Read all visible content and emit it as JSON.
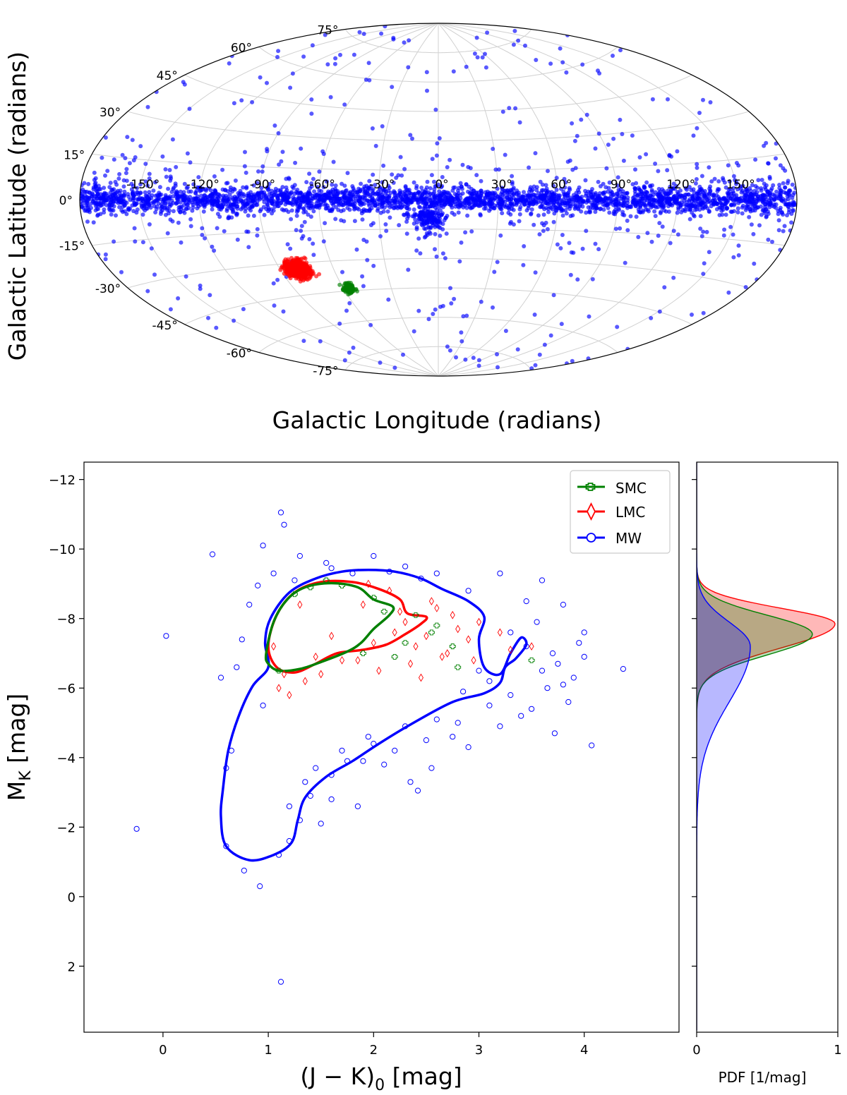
{
  "chart_data": [
    {
      "type": "scatter",
      "projection": "aitoff",
      "title": "",
      "xlabel": "Galactic Longitude (radians)",
      "ylabel": "Galactic Latitude (radians)",
      "lon_tick_labels": [
        "-150°",
        "-120°",
        "-90°",
        "-60°",
        "-30°",
        "0°",
        "30°",
        "60°",
        "90°",
        "120°",
        "150°"
      ],
      "lat_tick_labels": [
        "75°",
        "60°",
        "45°",
        "30°",
        "15°",
        "0°",
        "-15°",
        "-30°",
        "-45°",
        "-60°",
        "-75°"
      ],
      "grid": true,
      "series": [
        {
          "name": "MW",
          "color": "#0000ff",
          "description": "dense band along the Galactic plane with scattered high-latitude stars and a bulge extension near l=0° below the plane"
        },
        {
          "name": "LMC",
          "color": "#ff0000",
          "center_lon_deg": -80,
          "center_lat_deg": -33
        },
        {
          "name": "SMC",
          "color": "#008000",
          "center_lon_deg": -57,
          "center_lat_deg": -44
        }
      ]
    },
    {
      "type": "scatter",
      "title": "",
      "xlabel": "(J − K)",
      "xlabel_sub": "0",
      "xlabel_unit": "[mag]",
      "ylabel": "M",
      "ylabel_sub": "K",
      "ylabel_unit": "[mag]",
      "xlim": [
        -0.75,
        4.9
      ],
      "ylim": [
        3.9,
        -12.5
      ],
      "xticks": [
        0,
        1,
        2,
        3,
        4
      ],
      "yticks": [
        -12,
        -10,
        -8,
        -6,
        -4,
        -2,
        0,
        2
      ],
      "xtick_labels": [
        "0",
        "1",
        "2",
        "3",
        "4"
      ],
      "ytick_labels": [
        "−12",
        "−10",
        "−8",
        "−6",
        "−4",
        "−2",
        "0",
        "2"
      ],
      "legend": {
        "position": "top-right",
        "entries": [
          "SMC",
          "LMC",
          "MW"
        ]
      },
      "series": [
        {
          "name": "SMC",
          "color": "#008000",
          "marker": "plus",
          "points": [
            [
              1.4,
              -8.9
            ],
            [
              1.55,
              -9.1
            ],
            [
              2.0,
              -8.6
            ],
            [
              2.1,
              -8.2
            ],
            [
              2.4,
              -8.1
            ],
            [
              2.6,
              -7.8
            ],
            [
              2.3,
              -7.3
            ],
            [
              2.2,
              -6.9
            ],
            [
              2.55,
              -7.6
            ],
            [
              2.8,
              -6.6
            ],
            [
              3.5,
              -6.8
            ],
            [
              1.9,
              -7.0
            ],
            [
              1.1,
              -6.5
            ],
            [
              2.75,
              -7.2
            ],
            [
              1.25,
              -8.7
            ],
            [
              1.7,
              -8.95
            ]
          ],
          "contour": [
            [
              0.98,
              -7.0
            ],
            [
              1.05,
              -7.9
            ],
            [
              1.18,
              -8.55
            ],
            [
              1.35,
              -8.9
            ],
            [
              1.6,
              -9.02
            ],
            [
              1.85,
              -8.9
            ],
            [
              2.0,
              -8.55
            ],
            [
              2.18,
              -8.35
            ],
            [
              2.15,
              -8.1
            ],
            [
              2.0,
              -7.7
            ],
            [
              1.88,
              -7.3
            ],
            [
              1.75,
              -7.05
            ],
            [
              1.5,
              -6.75
            ],
            [
              1.3,
              -6.55
            ],
            [
              1.1,
              -6.5
            ],
            [
              1.0,
              -6.7
            ]
          ]
        },
        {
          "name": "LMC",
          "color": "#ff0000",
          "marker": "diamond",
          "points": [
            [
              1.1,
              -6.0
            ],
            [
              1.2,
              -5.8
            ],
            [
              1.35,
              -6.2
            ],
            [
              1.5,
              -6.4
            ],
            [
              1.7,
              -6.8
            ],
            [
              1.85,
              -6.8
            ],
            [
              2.0,
              -7.3
            ],
            [
              2.2,
              -7.6
            ],
            [
              2.3,
              -7.9
            ],
            [
              2.4,
              -7.2
            ],
            [
              2.5,
              -7.5
            ],
            [
              2.6,
              -8.3
            ],
            [
              2.7,
              -7.0
            ],
            [
              2.8,
              -7.7
            ],
            [
              2.9,
              -7.4
            ],
            [
              3.0,
              -7.9
            ],
            [
              3.2,
              -7.6
            ],
            [
              3.5,
              -7.2
            ],
            [
              2.35,
              -6.7
            ],
            [
              2.55,
              -8.5
            ],
            [
              2.15,
              -8.8
            ],
            [
              1.95,
              -9.0
            ],
            [
              1.3,
              -8.4
            ],
            [
              1.05,
              -7.2
            ],
            [
              1.45,
              -6.9
            ],
            [
              1.6,
              -7.5
            ],
            [
              2.05,
              -6.5
            ],
            [
              2.45,
              -6.3
            ],
            [
              2.65,
              -6.9
            ],
            [
              1.15,
              -6.4
            ],
            [
              2.25,
              -8.2
            ],
            [
              2.75,
              -8.1
            ],
            [
              2.95,
              -6.8
            ],
            [
              3.3,
              -7.1
            ],
            [
              1.9,
              -8.4
            ]
          ],
          "contour": [
            [
              1.0,
              -7.2
            ],
            [
              1.08,
              -8.1
            ],
            [
              1.25,
              -8.75
            ],
            [
              1.5,
              -9.05
            ],
            [
              1.8,
              -9.05
            ],
            [
              2.05,
              -8.85
            ],
            [
              2.25,
              -8.55
            ],
            [
              2.32,
              -8.15
            ],
            [
              2.5,
              -8.05
            ],
            [
              2.45,
              -7.85
            ],
            [
              2.3,
              -7.55
            ],
            [
              2.12,
              -7.25
            ],
            [
              1.9,
              -7.1
            ],
            [
              1.65,
              -7.0
            ],
            [
              1.45,
              -6.7
            ],
            [
              1.25,
              -6.45
            ],
            [
              1.08,
              -6.6
            ]
          ]
        },
        {
          "name": "MW",
          "color": "#0000ff",
          "marker": "circle",
          "points": [
            [
              0.47,
              -9.85
            ],
            [
              0.03,
              -7.5
            ],
            [
              -0.25,
              -1.95
            ],
            [
              1.12,
              -11.05
            ],
            [
              1.15,
              -10.7
            ],
            [
              0.95,
              -10.1
            ],
            [
              1.3,
              -9.8
            ],
            [
              1.55,
              -9.6
            ],
            [
              1.8,
              -9.3
            ],
            [
              2.0,
              -9.8
            ],
            [
              2.3,
              -9.5
            ],
            [
              2.6,
              -9.3
            ],
            [
              2.9,
              -8.8
            ],
            [
              3.2,
              -9.3
            ],
            [
              3.6,
              -9.1
            ],
            [
              3.8,
              -8.4
            ],
            [
              4.0,
              -7.6
            ],
            [
              4.37,
              -6.55
            ],
            [
              4.07,
              -4.35
            ],
            [
              3.72,
              -4.7
            ],
            [
              3.4,
              -5.2
            ],
            [
              3.1,
              -5.5
            ],
            [
              2.8,
              -5.0
            ],
            [
              2.5,
              -4.5
            ],
            [
              2.2,
              -4.2
            ],
            [
              1.9,
              -3.9
            ],
            [
              1.6,
              -3.5
            ],
            [
              1.4,
              -2.9
            ],
            [
              1.3,
              -2.2
            ],
            [
              1.2,
              -1.6
            ],
            [
              1.1,
              -1.2
            ],
            [
              0.92,
              -0.3
            ],
            [
              0.77,
              -0.75
            ],
            [
              1.12,
              2.45
            ],
            [
              0.6,
              -1.45
            ],
            [
              0.6,
              -3.7
            ],
            [
              0.55,
              -6.3
            ],
            [
              0.75,
              -7.4
            ],
            [
              0.82,
              -8.4
            ],
            [
              2.42,
              -3.05
            ],
            [
              2.35,
              -3.3
            ],
            [
              1.85,
              -2.6
            ],
            [
              1.6,
              -2.8
            ],
            [
              3.9,
              -6.3
            ],
            [
              3.65,
              -6.0
            ],
            [
              3.7,
              -7.0
            ],
            [
              3.55,
              -7.9
            ],
            [
              3.45,
              -8.5
            ],
            [
              3.3,
              -7.6
            ],
            [
              3.0,
              -6.5
            ],
            [
              2.85,
              -5.9
            ],
            [
              2.6,
              -5.1
            ],
            [
              2.3,
              -4.9
            ],
            [
              1.95,
              -4.6
            ],
            [
              1.7,
              -4.2
            ],
            [
              2.1,
              -3.8
            ],
            [
              2.75,
              -4.6
            ],
            [
              3.2,
              -4.9
            ],
            [
              3.5,
              -5.4
            ],
            [
              3.85,
              -5.6
            ],
            [
              4.0,
              -6.9
            ],
            [
              3.75,
              -6.7
            ],
            [
              0.9,
              -8.95
            ],
            [
              1.05,
              -9.3
            ],
            [
              0.7,
              -6.6
            ],
            [
              0.65,
              -4.2
            ],
            [
              0.95,
              -5.5
            ],
            [
              1.35,
              -3.3
            ],
            [
              1.5,
              -2.1
            ],
            [
              1.75,
              -3.9
            ],
            [
              2.55,
              -3.7
            ],
            [
              2.9,
              -4.3
            ],
            [
              3.3,
              -5.8
            ],
            [
              3.1,
              -6.2
            ],
            [
              3.6,
              -6.5
            ],
            [
              3.95,
              -7.3
            ],
            [
              1.25,
              -9.1
            ],
            [
              1.6,
              -9.45
            ],
            [
              2.15,
              -9.35
            ],
            [
              2.45,
              -9.15
            ],
            [
              3.45,
              -7.2
            ],
            [
              3.8,
              -6.1
            ],
            [
              2.0,
              -4.4
            ],
            [
              1.45,
              -3.7
            ],
            [
              1.2,
              -2.6
            ]
          ],
          "contour": [
            [
              1.0,
              -6.6
            ],
            [
              0.85,
              -6.05
            ],
            [
              0.72,
              -5.2
            ],
            [
              0.62,
              -4.2
            ],
            [
              0.57,
              -3.1
            ],
            [
              0.55,
              -2.3
            ],
            [
              0.6,
              -1.45
            ],
            [
              0.82,
              -1.05
            ],
            [
              1.05,
              -1.2
            ],
            [
              1.22,
              -1.55
            ],
            [
              1.28,
              -2.2
            ],
            [
              1.35,
              -2.85
            ],
            [
              1.55,
              -3.45
            ],
            [
              1.8,
              -3.9
            ],
            [
              2.05,
              -4.4
            ],
            [
              2.35,
              -4.95
            ],
            [
              2.75,
              -5.6
            ],
            [
              3.05,
              -5.85
            ],
            [
              3.2,
              -6.15
            ],
            [
              3.25,
              -6.6
            ],
            [
              3.35,
              -6.85
            ],
            [
              3.45,
              -7.25
            ],
            [
              3.4,
              -7.45
            ],
            [
              3.3,
              -7.0
            ],
            [
              3.2,
              -6.4
            ],
            [
              3.05,
              -6.6
            ],
            [
              3.0,
              -7.4
            ],
            [
              3.05,
              -8.05
            ],
            [
              2.9,
              -8.5
            ],
            [
              2.65,
              -8.85
            ],
            [
              2.45,
              -9.15
            ],
            [
              2.2,
              -9.35
            ],
            [
              1.95,
              -9.4
            ],
            [
              1.7,
              -9.35
            ],
            [
              1.45,
              -9.15
            ],
            [
              1.2,
              -8.75
            ],
            [
              1.02,
              -8.0
            ],
            [
              0.97,
              -7.3
            ]
          ]
        }
      ]
    },
    {
      "type": "area",
      "title": "",
      "xlabel": "PDF [1/mag]",
      "xlim": [
        0,
        1
      ],
      "xticks": [
        0,
        1
      ],
      "xtick_labels": [
        "0",
        "1"
      ],
      "ylim": [
        3.9,
        -12.5
      ],
      "series": [
        {
          "name": "LMC",
          "color": "#ff0000",
          "peak_pdf": 0.98,
          "peak_mk": -7.85,
          "sigma_bright": 0.45,
          "sigma_faint": 0.7
        },
        {
          "name": "SMC",
          "color": "#008000",
          "peak_pdf": 0.82,
          "peak_mk": -7.55,
          "sigma_bright": 0.55,
          "sigma_faint": 0.6
        },
        {
          "name": "MW",
          "color": "#0000ff",
          "peak_pdf": 0.38,
          "peak_mk": -7.2,
          "sigma_bright": 0.7,
          "sigma_faint": 1.6
        }
      ]
    }
  ]
}
